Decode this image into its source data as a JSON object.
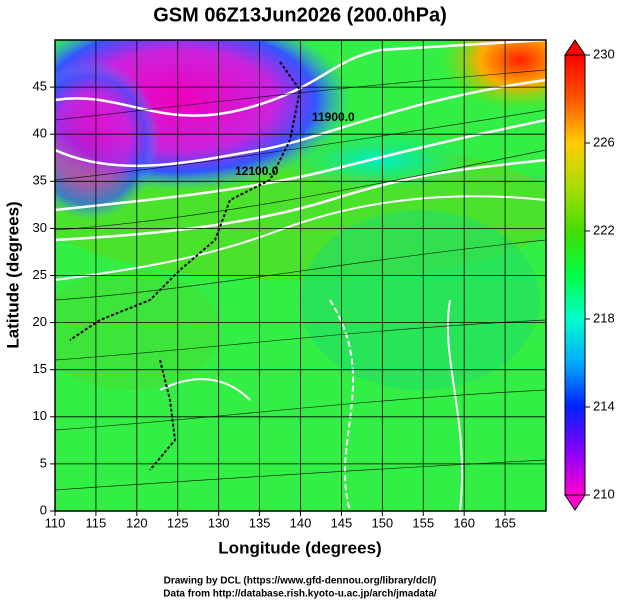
{
  "chart_data": {
    "type": "heatmap",
    "title": "GSM 06Z13Jun2026 (200.0hPa)",
    "xlabel": "Longitude (degrees)",
    "ylabel": "Latitude  (degrees)",
    "xlim": [
      110,
      170
    ],
    "xticks": [
      110,
      115,
      120,
      125,
      130,
      135,
      140,
      145,
      150,
      155,
      160,
      165
    ],
    "ylim": [
      0,
      50
    ],
    "yticks": [
      0,
      5,
      10,
      15,
      20,
      25,
      30,
      35,
      40,
      45
    ],
    "grid": true,
    "colorbar": {
      "lim": [
        210,
        230
      ],
      "ticks": [
        210,
        214,
        218,
        222,
        226,
        230
      ],
      "colors": [
        "#ff00cc",
        "#8800ff",
        "#0022ff",
        "#00aaff",
        "#00ffcc",
        "#00ff44",
        "#44dd00",
        "#aadd00",
        "#ffcc00",
        "#ff5500",
        "#ff0000"
      ]
    },
    "contour_labels": [
      "12100.0",
      "11900.0"
    ],
    "notes": [
      "Drawing by DCL (https://www.gfd-dennou.org/library/dcl/)",
      "Data from http://database.rish.kyoto-u.ac.jp/arch/jmadata/"
    ]
  }
}
